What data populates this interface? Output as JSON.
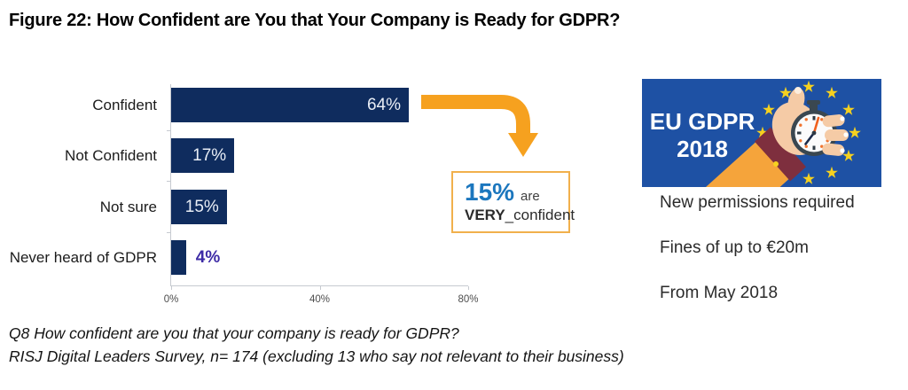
{
  "title": "Figure 22: How Confident are You that Your Company is Ready for GDPR?",
  "chart_data": {
    "type": "bar",
    "orientation": "horizontal",
    "title": "Figure 22: How Confident are You that Your Company is Ready for GDPR?",
    "categories": [
      "Confident",
      "Not Confident",
      "Not sure",
      "Never heard of GDPR"
    ],
    "values": [
      64,
      17,
      15,
      4
    ],
    "value_labels": [
      "64%",
      "17%",
      "15%",
      "4%"
    ],
    "xlim": [
      0,
      80
    ],
    "x_tick_values": [
      0,
      40,
      80
    ],
    "x_tick_labels": [
      "0%",
      "40%",
      "80%"
    ],
    "grid": false,
    "legend": "none",
    "bar_color": "#0f2c5e",
    "inside_label_color": "#e9eef6",
    "outside_label_color": "#3d2ba6",
    "annotation": "15% are VERY confident"
  },
  "callout": {
    "percent": "15%",
    "are_label": "are",
    "bold_word": "VERY",
    "separator": "_",
    "rest_word": "confident",
    "percent_color": "#1c77be",
    "border_color": "#f1b04c"
  },
  "arrow": {
    "color": "#f6a11f"
  },
  "eu_banner": {
    "line1": "EU GDPR",
    "line2": "2018",
    "background_color": "#1e51a4",
    "star_color": "#f6d11f"
  },
  "info_items": [
    "New permissions required",
    "Fines of up to €20m",
    "From May 2018"
  ],
  "footnote": {
    "line1": "Q8 How confident are you that your company is ready for GDPR?",
    "line2": "RISJ Digital Leaders Survey, n= 174 (excluding 13 who say not relevant to their business)"
  }
}
